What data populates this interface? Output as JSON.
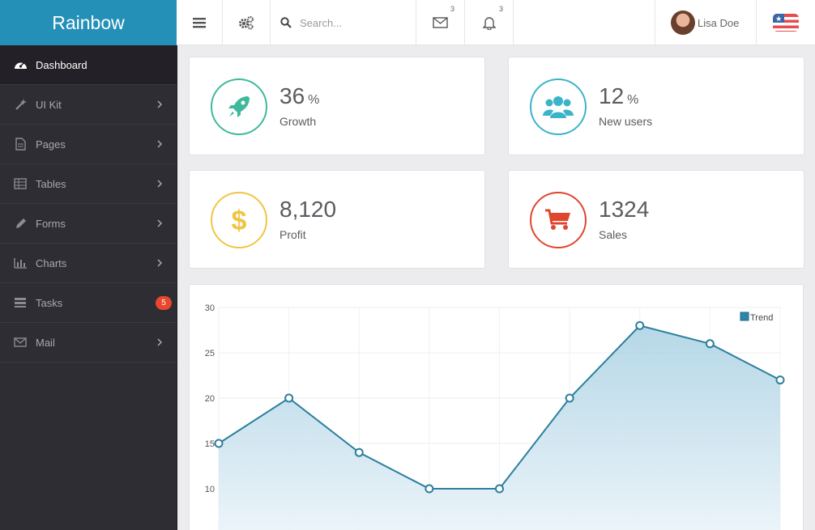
{
  "brand": {
    "name": "Rainbow"
  },
  "sidebar": {
    "items": [
      {
        "label": "Dashboard",
        "icon": "dashboard-icon"
      },
      {
        "label": "UI Kit",
        "icon": "magic-wand-icon"
      },
      {
        "label": "Pages",
        "icon": "file-icon"
      },
      {
        "label": "Tables",
        "icon": "table-icon"
      },
      {
        "label": "Forms",
        "icon": "pencil-icon"
      },
      {
        "label": "Charts",
        "icon": "bar-chart-icon"
      },
      {
        "label": "Tasks",
        "icon": "tasks-icon",
        "badge": "5"
      },
      {
        "label": "Mail",
        "icon": "envelope-icon"
      }
    ]
  },
  "topbar": {
    "search_placeholder": "Search...",
    "messages_count": "3",
    "notifications_count": "3",
    "user_name": "Lisa Doe"
  },
  "stats": [
    {
      "value": "36",
      "unit": "%",
      "label": "Growth",
      "color": "#3fb99b",
      "icon": "rocket-icon"
    },
    {
      "value": "12",
      "unit": "%",
      "label": "New users",
      "color": "#3bb4c9",
      "icon": "users-icon"
    },
    {
      "value": "8,120",
      "unit": "",
      "label": "Profit",
      "color": "#f0c545",
      "icon": "dollar-icon"
    },
    {
      "value": "1324",
      "unit": "",
      "label": "Sales",
      "color": "#e0462e",
      "icon": "cart-icon"
    }
  ],
  "colors": {
    "accent": "#2490b8",
    "line": "#2c7f9d",
    "sidebar": "#2f2d34"
  },
  "chart_data": {
    "type": "area",
    "legend": [
      "Trend"
    ],
    "legend_position": "top-right",
    "y_ticks": [
      "30",
      "25",
      "20",
      "15",
      "10"
    ],
    "ylim": [
      5,
      30
    ],
    "series": [
      {
        "name": "Trend",
        "values": [
          15,
          20,
          14,
          10,
          10,
          20,
          28,
          26,
          22
        ]
      }
    ],
    "grid": true
  }
}
